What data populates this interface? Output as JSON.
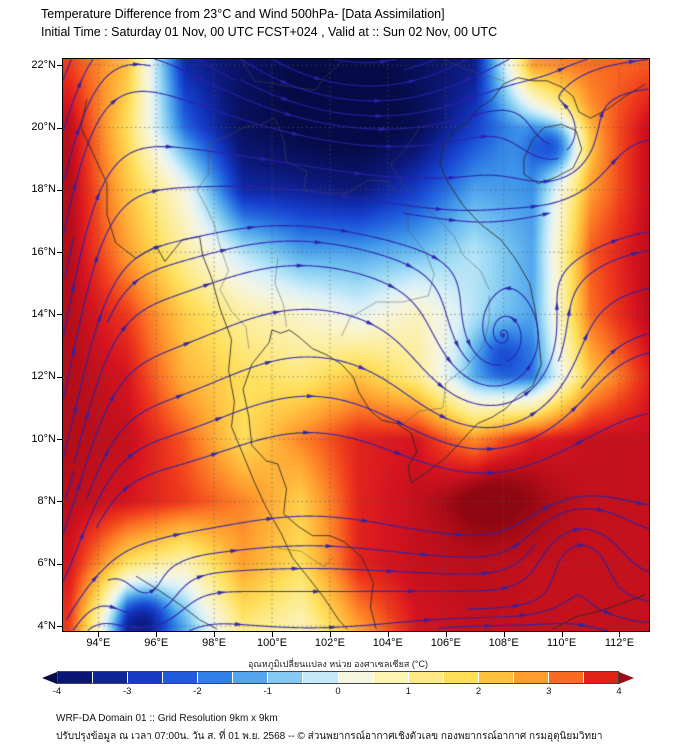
{
  "header": {
    "title": "Temperature Difference from 23°C and Wind 500hPa- [Data Assimilation]",
    "subtitle": "Initial Time : Saturday 01 Nov, 00 UTC FCST+024 , Valid at ::  Sun 02 Nov, 00 UTC"
  },
  "axes": {
    "lat_labels": [
      "22°N",
      "20°N",
      "18°N",
      "16°N",
      "14°N",
      "12°N",
      "10°N",
      "8°N",
      "6°N",
      "4°N"
    ],
    "lat_values": [
      22,
      20,
      18,
      16,
      14,
      12,
      10,
      8,
      6,
      4
    ],
    "lon_labels": [
      "94°E",
      "96°E",
      "98°E",
      "100°E",
      "102°E",
      "104°E",
      "106°E",
      "108°E",
      "110°E",
      "112°E"
    ],
    "lon_values": [
      94,
      96,
      98,
      100,
      102,
      104,
      106,
      108,
      110,
      112
    ],
    "lon_range": [
      92.78,
      113.02
    ],
    "lat_range": [
      3.84,
      22.2
    ]
  },
  "colorbar": {
    "label": "อุณหภูมิเปลี่ยนแปลง หน่วย องศาเซลเซียส (°C)",
    "tick_labels": [
      "-4",
      "-3",
      "-2",
      "-1",
      "0",
      "1",
      "2",
      "3",
      "4"
    ],
    "tick_values": [
      -4,
      -3,
      -2,
      -1,
      0,
      1,
      2,
      3,
      4
    ],
    "range": [
      -4,
      4
    ],
    "under_color": "#050b46",
    "over_color": "#9c0a14",
    "segment_colors": [
      "#0a1575",
      "#0f2496",
      "#173bc4",
      "#2159dc",
      "#2f7fe8",
      "#55a5ee",
      "#86c9f2",
      "#c6e9f8",
      "#f6f7e0",
      "#fdf3b4",
      "#fdea84",
      "#ffdf55",
      "#ffc13e",
      "#ff9c2e",
      "#f96a22",
      "#e02318"
    ]
  },
  "footer": {
    "line1": "WRF-DA Domain 01 :: Grid Resolution 9km x 9km",
    "line2": "ปรับปรุงข้อมูล ณ เวลา 07:00น. วัน ส. ที่ 01 พ.ย. 2568 -- © ส่วนพยากรณ์อากาศเชิงตัวเลข กองพยากรณ์อากาศ กรมอุตุนิยมวิทยา"
  },
  "chart_data": {
    "type": "heatmap",
    "overlay": "streamlines",
    "title": "Temperature difference from 23°C (shaded) with 500 hPa wind streamlines",
    "units": "°C",
    "value_range": [
      -4,
      4
    ],
    "grid_lons": [
      93,
      95,
      97,
      99,
      101,
      103,
      105,
      107,
      109,
      111,
      113
    ],
    "grid_lats": [
      22,
      20,
      18,
      16,
      14,
      12,
      10,
      8,
      6,
      4
    ],
    "values": [
      [
        3.5,
        2.0,
        -3.5,
        -4.3,
        -4.5,
        -4.5,
        -4.2,
        -3.8,
        2.5,
        3.0,
        3.2
      ],
      [
        4.3,
        1.5,
        -2.5,
        -4.4,
        -4.6,
        -4.6,
        -4.3,
        -3.0,
        -1.5,
        2.5,
        4.2
      ],
      [
        4.4,
        2.0,
        0.0,
        -3.5,
        -3.6,
        -3.8,
        -3.0,
        -1.8,
        -2.0,
        2.5,
        4.2
      ],
      [
        4.4,
        2.5,
        0.8,
        -0.8,
        -1.8,
        -1.8,
        -1.5,
        -0.8,
        -1.8,
        3.2,
        4.3
      ],
      [
        4.4,
        3.5,
        1.8,
        0.8,
        0.3,
        -0.3,
        0.5,
        -0.8,
        -1.8,
        3.0,
        4.3
      ],
      [
        4.4,
        4.0,
        2.2,
        1.5,
        1.2,
        2.0,
        1.0,
        -1.5,
        -2.2,
        2.0,
        3.8
      ],
      [
        4.4,
        4.2,
        3.2,
        1.5,
        2.8,
        3.8,
        4.0,
        2.5,
        3.8,
        4.2,
        4.2
      ],
      [
        4.3,
        4.0,
        3.5,
        2.8,
        1.8,
        3.8,
        4.2,
        4.6,
        4.5,
        4.2,
        4.2
      ],
      [
        4.0,
        1.5,
        0.5,
        2.5,
        1.5,
        3.8,
        4.2,
        4.3,
        4.2,
        4.2,
        4.2
      ],
      [
        3.5,
        -2.5,
        -1.5,
        1.2,
        0.5,
        2.5,
        4.0,
        4.2,
        4.2,
        4.2,
        4.2
      ]
    ],
    "anomaly_blobs": [
      {
        "lon": 107.9,
        "lat": 12.7,
        "sigma": 0.9,
        "amp": -1.2
      },
      {
        "lon": 109.9,
        "lat": 19.4,
        "sigma": 0.9,
        "amp": -2.6
      },
      {
        "lon": 95.6,
        "lat": 4.4,
        "sigma": 1.0,
        "amp": -2.0
      },
      {
        "lon": 102.8,
        "lat": 20.8,
        "sigma": 2.6,
        "amp": -0.6
      },
      {
        "lon": 107.6,
        "lat": 8.4,
        "sigma": 1.4,
        "amp": 0.6
      }
    ],
    "colormap": [
      [
        -4.8,
        "#050b46"
      ],
      [
        -4,
        "#0c1878"
      ],
      [
        -3.5,
        "#102aa8"
      ],
      [
        -3,
        "#1742d0"
      ],
      [
        -2.5,
        "#2468e0"
      ],
      [
        -2,
        "#3f95ea"
      ],
      [
        -1.5,
        "#6cbcf0"
      ],
      [
        -1,
        "#a0dcf5"
      ],
      [
        -0.5,
        "#d8f0fa"
      ],
      [
        0,
        "#f4f6e4"
      ],
      [
        0.5,
        "#fbf2bc"
      ],
      [
        1,
        "#fdec90"
      ],
      [
        1.5,
        "#ffe05c"
      ],
      [
        2,
        "#ffc342"
      ],
      [
        2.5,
        "#ff9f30"
      ],
      [
        3,
        "#fb7024"
      ],
      [
        3.5,
        "#ef3a1c"
      ],
      [
        4,
        "#d61420"
      ],
      [
        4.8,
        "#8f0712"
      ]
    ],
    "streamline_color": "#2a22aa",
    "flow": {
      "base_u": 0.95,
      "wave_amp": 0.38,
      "west_jet": {
        "lon": 92.9,
        "width": 2.0,
        "v": 2.6,
        "u_reduction": 0.45
      },
      "vortices": [
        {
          "lon": 103.5,
          "lat": 24.5,
          "sigma": 5.5,
          "strength": 0.35,
          "inflow": 0
        },
        {
          "lon": 107.9,
          "lat": 12.7,
          "sigma": 2.3,
          "strength": 1.6,
          "inflow": 0.22
        },
        {
          "lon": 109.9,
          "lat": 19.4,
          "sigma": 1.5,
          "strength": 2.2,
          "inflow": 0.25
        },
        {
          "lon": 110.6,
          "lat": 6.6,
          "sigma": 1.7,
          "strength": -1.3,
          "inflow": 0
        },
        {
          "lon": 95.7,
          "lat": 4.6,
          "sigma": 1.4,
          "strength": 1.2,
          "inflow": 0.15
        }
      ]
    }
  },
  "map_layers": {
    "coastlines": [
      [
        [
          93.6,
          20.9
        ],
        [
          93.4,
          20.0
        ],
        [
          93.8,
          19.2
        ],
        [
          94.3,
          18.2
        ],
        [
          94.3,
          17.2
        ],
        [
          94.6,
          16.3
        ],
        [
          95.3,
          15.8
        ],
        [
          96.0,
          16.2
        ],
        [
          96.3,
          15.7
        ],
        [
          96.9,
          16.4
        ],
        [
          97.5,
          16.5
        ],
        [
          97.6,
          15.9
        ],
        [
          97.9,
          15.2
        ],
        [
          98.2,
          14.2
        ],
        [
          98.6,
          13.2
        ],
        [
          98.5,
          12.2
        ],
        [
          98.7,
          11.2
        ],
        [
          98.6,
          10.4
        ],
        [
          99.0,
          9.5
        ],
        [
          99.4,
          8.6
        ],
        [
          99.8,
          7.8
        ],
        [
          100.3,
          7.0
        ],
        [
          100.7,
          6.2
        ],
        [
          101.3,
          5.5
        ],
        [
          101.8,
          4.9
        ],
        [
          102.3,
          4.2
        ],
        [
          102.6,
          3.9
        ]
      ],
      [
        [
          103.6,
          3.9
        ],
        [
          103.4,
          4.6
        ],
        [
          103.5,
          5.4
        ],
        [
          103.1,
          6.2
        ],
        [
          102.5,
          6.7
        ],
        [
          102.0,
          6.9
        ],
        [
          101.4,
          6.9
        ],
        [
          100.9,
          7.2
        ],
        [
          100.4,
          7.6
        ],
        [
          100.5,
          8.4
        ],
        [
          100.2,
          9.2
        ],
        [
          99.8,
          9.3
        ],
        [
          99.3,
          9.8
        ],
        [
          99.2,
          10.7
        ],
        [
          99.0,
          11.6
        ],
        [
          99.3,
          12.4
        ],
        [
          99.9,
          13.1
        ],
        [
          100.0,
          13.5
        ],
        [
          100.3,
          13.4
        ],
        [
          100.6,
          13.5
        ],
        [
          100.9,
          13.3
        ],
        [
          101.4,
          12.9
        ],
        [
          101.9,
          12.7
        ],
        [
          102.4,
          12.4
        ],
        [
          102.8,
          12.0
        ],
        [
          103.0,
          11.5
        ],
        [
          103.4,
          10.9
        ],
        [
          103.8,
          10.6
        ],
        [
          104.3,
          10.5
        ],
        [
          104.8,
          10.2
        ],
        [
          105.0,
          9.6
        ],
        [
          104.7,
          9.1
        ],
        [
          104.8,
          8.6
        ],
        [
          105.3,
          8.9
        ],
        [
          106.0,
          9.4
        ],
        [
          106.6,
          10.0
        ],
        [
          107.1,
          10.5
        ],
        [
          107.6,
          10.7
        ],
        [
          108.1,
          11.0
        ],
        [
          108.5,
          11.4
        ],
        [
          109.0,
          11.7
        ],
        [
          109.3,
          12.4
        ],
        [
          109.2,
          13.3
        ],
        [
          109.1,
          14.1
        ],
        [
          108.9,
          15.0
        ],
        [
          108.4,
          15.8
        ],
        [
          107.9,
          16.4
        ],
        [
          107.2,
          16.9
        ],
        [
          106.6,
          17.5
        ],
        [
          106.1,
          18.2
        ],
        [
          105.8,
          18.8
        ],
        [
          105.9,
          19.4
        ],
        [
          106.3,
          19.9
        ],
        [
          106.8,
          20.2
        ],
        [
          107.1,
          20.6
        ],
        [
          107.6,
          20.9
        ],
        [
          108.0,
          21.4
        ],
        [
          108.5,
          21.6
        ],
        [
          109.0,
          21.5
        ],
        [
          109.5,
          21.5
        ],
        [
          110.0,
          21.3
        ],
        [
          110.4,
          21.0
        ],
        [
          110.6,
          20.5
        ],
        [
          111.0,
          20.3
        ],
        [
          111.6,
          20.6
        ],
        [
          112.2,
          21.0
        ],
        [
          112.9,
          21.4
        ]
      ],
      [
        [
          108.7,
          18.5
        ],
        [
          109.2,
          18.2
        ],
        [
          109.8,
          18.4
        ],
        [
          110.4,
          18.7
        ],
        [
          110.7,
          19.3
        ],
        [
          110.5,
          19.9
        ],
        [
          110.0,
          20.1
        ],
        [
          109.4,
          20.0
        ],
        [
          109.0,
          19.6
        ],
        [
          108.7,
          19.0
        ],
        [
          108.7,
          18.5
        ]
      ],
      [
        [
          95.3,
          5.6
        ],
        [
          96.0,
          5.2
        ],
        [
          96.8,
          4.7
        ],
        [
          97.5,
          4.2
        ],
        [
          98.1,
          3.9
        ]
      ],
      [
        [
          109.7,
          3.9
        ],
        [
          110.5,
          4.3
        ],
        [
          111.4,
          4.5
        ],
        [
          112.3,
          4.8
        ],
        [
          112.9,
          5.0
        ]
      ]
    ],
    "borders": [
      [
        [
          97.8,
          18.5
        ],
        [
          97.4,
          18.0
        ],
        [
          97.7,
          17.5
        ],
        [
          98.0,
          16.9
        ],
        [
          98.2,
          16.2
        ],
        [
          98.5,
          15.4
        ],
        [
          98.2,
          14.8
        ],
        [
          98.6,
          14.1
        ],
        [
          99.1,
          13.6
        ],
        [
          99.2,
          12.9
        ]
      ],
      [
        [
          100.1,
          20.3
        ],
        [
          100.4,
          19.6
        ],
        [
          100.5,
          18.9
        ],
        [
          101.2,
          18.6
        ],
        [
          101.1,
          18.0
        ],
        [
          101.7,
          17.9
        ],
        [
          102.6,
          17.9
        ],
        [
          103.3,
          18.3
        ],
        [
          103.9,
          18.3
        ],
        [
          104.7,
          17.6
        ],
        [
          104.7,
          16.7
        ],
        [
          105.3,
          16.0
        ],
        [
          105.6,
          15.3
        ],
        [
          105.4,
          14.6
        ]
      ],
      [
        [
          105.4,
          14.6
        ],
        [
          104.5,
          14.4
        ],
        [
          103.6,
          14.4
        ],
        [
          102.7,
          13.9
        ],
        [
          102.4,
          13.3
        ]
      ],
      [
        [
          105.1,
          20.0
        ],
        [
          104.6,
          19.3
        ],
        [
          104.1,
          18.8
        ],
        [
          104.5,
          18.2
        ],
        [
          105.1,
          17.6
        ],
        [
          105.7,
          17.1
        ],
        [
          106.3,
          16.5
        ],
        [
          106.6,
          15.9
        ],
        [
          107.2,
          15.4
        ],
        [
          107.5,
          14.8
        ]
      ],
      [
        [
          107.5,
          14.6
        ],
        [
          107.5,
          13.8
        ],
        [
          107.3,
          13.0
        ],
        [
          106.7,
          12.3
        ],
        [
          106.0,
          11.8
        ],
        [
          105.9,
          11.0
        ],
        [
          105.1,
          10.9
        ],
        [
          104.4,
          10.4
        ]
      ],
      [
        [
          98.9,
          22.2
        ],
        [
          99.4,
          21.5
        ],
        [
          100.1,
          21.4
        ],
        [
          100.7,
          21.3
        ],
        [
          101.5,
          21.2
        ],
        [
          101.8,
          21.6
        ],
        [
          102.4,
          22.1
        ]
      ],
      [
        [
          100.1,
          20.3
        ],
        [
          99.6,
          20.1
        ],
        [
          99.0,
          20.0
        ],
        [
          98.4,
          19.7
        ],
        [
          97.8,
          19.5
        ],
        [
          97.8,
          18.5
        ]
      ],
      [
        [
          100.2,
          6.5
        ],
        [
          101.0,
          6.4
        ],
        [
          101.8,
          5.9
        ],
        [
          102.1,
          6.2
        ]
      ],
      [
        [
          100.2,
          15.8
        ],
        [
          100.1,
          15.0
        ],
        [
          100.4,
          14.3
        ],
        [
          100.5,
          13.6
        ]
      ],
      [
        [
          105.9,
          22.2
        ],
        [
          106.6,
          21.9
        ],
        [
          107.3,
          21.7
        ],
        [
          108.0,
          21.5
        ]
      ]
    ]
  }
}
